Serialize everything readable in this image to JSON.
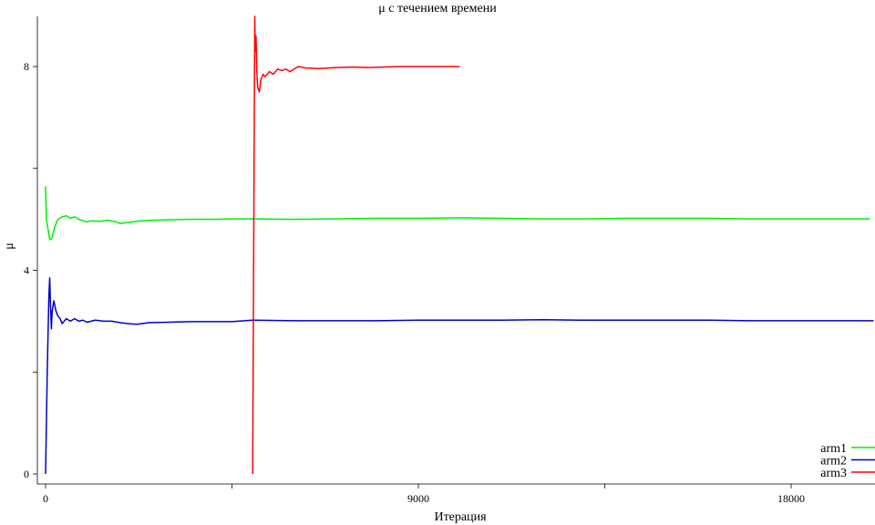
{
  "chart_data": {
    "type": "line",
    "title": "μ с течением времени",
    "xlabel": "Итерация",
    "ylabel": "μ",
    "xlim": [
      -100,
      20000
    ],
    "ylim": [
      -0.2,
      9.0
    ],
    "xticks": [
      0,
      4500,
      9000,
      13500,
      18000
    ],
    "xtick_labels": [
      "0",
      "",
      "9000",
      "",
      "18000"
    ],
    "yticks": [
      0,
      2,
      4,
      6,
      8
    ],
    "ytick_labels": [
      "0",
      "",
      "4",
      "",
      "8"
    ],
    "grid": false,
    "legend_position": "bottom-right",
    "series": [
      {
        "name": "arm1",
        "color": "#00ee00",
        "points": [
          [
            0,
            5.65
          ],
          [
            20,
            5.0
          ],
          [
            60,
            4.8
          ],
          [
            100,
            4.6
          ],
          [
            150,
            4.62
          ],
          [
            220,
            4.85
          ],
          [
            300,
            5.0
          ],
          [
            400,
            5.05
          ],
          [
            500,
            5.07
          ],
          [
            600,
            5.02
          ],
          [
            700,
            5.05
          ],
          [
            800,
            5.0
          ],
          [
            900,
            4.97
          ],
          [
            1000,
            4.95
          ],
          [
            1100,
            4.97
          ],
          [
            1300,
            4.96
          ],
          [
            1500,
            4.98
          ],
          [
            1700,
            4.95
          ],
          [
            1800,
            4.92
          ],
          [
            2000,
            4.94
          ],
          [
            2200,
            4.96
          ],
          [
            2500,
            4.98
          ],
          [
            3000,
            4.99
          ],
          [
            3500,
            5.0
          ],
          [
            4000,
            5.0
          ],
          [
            4500,
            5.01
          ],
          [
            5000,
            5.01
          ],
          [
            6000,
            5.0
          ],
          [
            7000,
            5.01
          ],
          [
            8000,
            5.02
          ],
          [
            9000,
            5.02
          ],
          [
            10000,
            5.03
          ],
          [
            11000,
            5.02
          ],
          [
            12000,
            5.01
          ],
          [
            13000,
            5.01
          ],
          [
            14000,
            5.02
          ],
          [
            15000,
            5.02
          ],
          [
            16000,
            5.02
          ],
          [
            17000,
            5.01
          ],
          [
            18000,
            5.01
          ],
          [
            19000,
            5.01
          ],
          [
            19900,
            5.01
          ]
        ]
      },
      {
        "name": "arm2",
        "color": "#0000cc",
        "points": [
          [
            0,
            0.0
          ],
          [
            40,
            2.0
          ],
          [
            80,
            3.5
          ],
          [
            100,
            3.85
          ],
          [
            120,
            3.3
          ],
          [
            140,
            2.85
          ],
          [
            160,
            3.2
          ],
          [
            200,
            3.4
          ],
          [
            250,
            3.2
          ],
          [
            300,
            3.1
          ],
          [
            350,
            3.05
          ],
          [
            400,
            2.95
          ],
          [
            500,
            3.05
          ],
          [
            600,
            3.0
          ],
          [
            700,
            3.05
          ],
          [
            800,
            3.0
          ],
          [
            900,
            3.02
          ],
          [
            1000,
            2.98
          ],
          [
            1200,
            3.02
          ],
          [
            1400,
            3.0
          ],
          [
            1600,
            3.0
          ],
          [
            1800,
            2.97
          ],
          [
            2000,
            2.95
          ],
          [
            2200,
            2.94
          ],
          [
            2500,
            2.97
          ],
          [
            3000,
            2.98
          ],
          [
            3500,
            2.99
          ],
          [
            4000,
            2.99
          ],
          [
            4500,
            2.99
          ],
          [
            5000,
            3.02
          ],
          [
            6000,
            3.01
          ],
          [
            7000,
            3.01
          ],
          [
            8000,
            3.01
          ],
          [
            9000,
            3.02
          ],
          [
            10000,
            3.02
          ],
          [
            11000,
            3.02
          ],
          [
            12000,
            3.03
          ],
          [
            13000,
            3.02
          ],
          [
            14000,
            3.02
          ],
          [
            15000,
            3.02
          ],
          [
            16000,
            3.02
          ],
          [
            17000,
            3.01
          ],
          [
            18000,
            3.01
          ],
          [
            19000,
            3.01
          ],
          [
            19990,
            3.01
          ]
        ]
      },
      {
        "name": "arm3",
        "color": "#ff0000",
        "points": [
          [
            5000,
            0.0
          ],
          [
            5050,
            9.0
          ],
          [
            5060,
            8.3
          ],
          [
            5080,
            8.6
          ],
          [
            5100,
            7.9
          ],
          [
            5120,
            7.6
          ],
          [
            5160,
            7.5
          ],
          [
            5200,
            7.75
          ],
          [
            5250,
            7.85
          ],
          [
            5300,
            7.8
          ],
          [
            5400,
            7.9
          ],
          [
            5500,
            7.85
          ],
          [
            5600,
            7.95
          ],
          [
            5700,
            7.92
          ],
          [
            5800,
            7.95
          ],
          [
            5900,
            7.9
          ],
          [
            6000,
            7.95
          ],
          [
            6100,
            8.0
          ],
          [
            6300,
            7.97
          ],
          [
            6600,
            7.96
          ],
          [
            7000,
            7.98
          ],
          [
            7400,
            7.99
          ],
          [
            7800,
            7.98
          ],
          [
            8200,
            7.99
          ],
          [
            8600,
            8.0
          ],
          [
            9000,
            8.0
          ],
          [
            9500,
            8.0
          ],
          [
            10000,
            8.0
          ]
        ]
      }
    ]
  }
}
